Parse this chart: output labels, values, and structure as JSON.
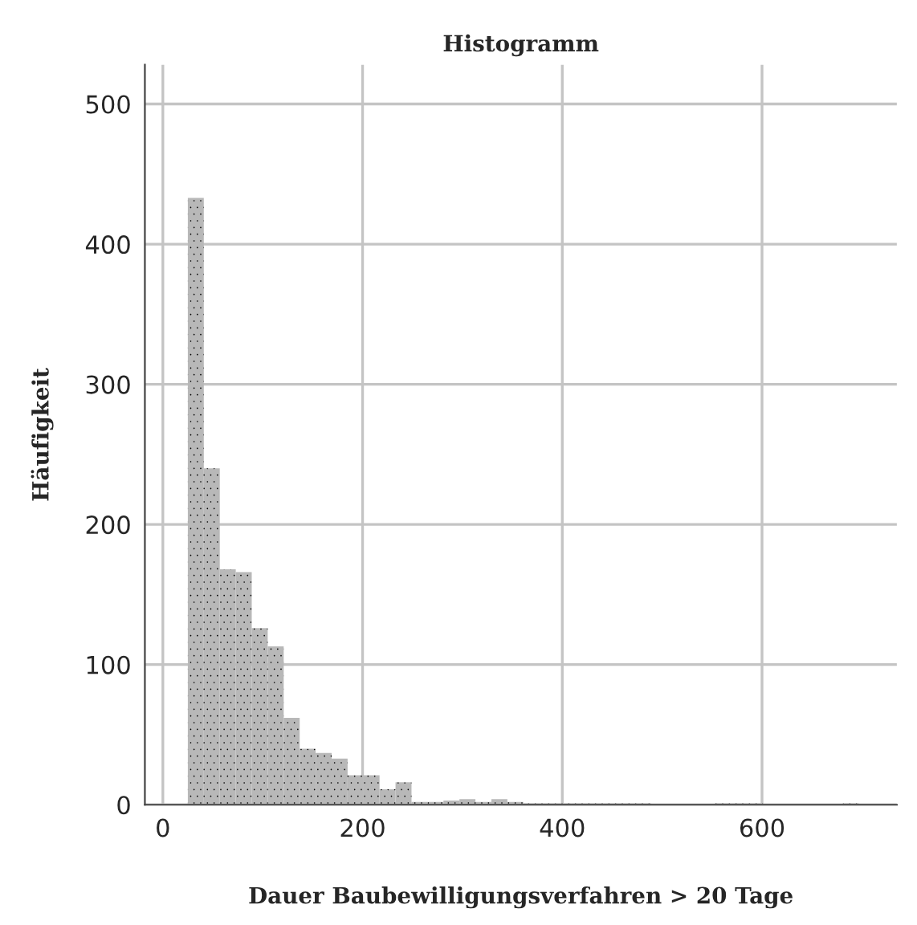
{
  "chart_data": {
    "type": "histogram",
    "title": "Histogramm",
    "xlabel": "Dauer Baubewilligungsverfahren > 20 Tage",
    "ylabel": "Häufigkeit",
    "bins": [
      25,
      41,
      57,
      73,
      89,
      105,
      121,
      137,
      153,
      169,
      185,
      201,
      217,
      233,
      249,
      265,
      281,
      297,
      313,
      329,
      345,
      361,
      377,
      393,
      409,
      425,
      441,
      457,
      473,
      489,
      505,
      521,
      537,
      553,
      569,
      585,
      601,
      617,
      633,
      649,
      665,
      681,
      697,
      713,
      729
    ],
    "values": [
      433,
      240,
      168,
      166,
      126,
      113,
      62,
      40,
      37,
      33,
      21,
      21,
      11,
      16,
      2,
      2,
      3,
      4,
      2,
      4,
      2,
      1,
      1,
      1,
      1,
      1,
      1,
      1,
      1,
      0,
      0,
      0,
      0,
      1,
      1,
      1,
      0,
      0,
      0,
      0,
      0,
      1,
      0,
      0
    ],
    "color": "#b8b8b8",
    "xlim": [
      -18,
      735
    ],
    "xticks": [
      0,
      200,
      400,
      600
    ],
    "ylim": [
      0,
      528
    ],
    "yticks": [
      0,
      100,
      200,
      300,
      400,
      500
    ],
    "grid": true
  }
}
